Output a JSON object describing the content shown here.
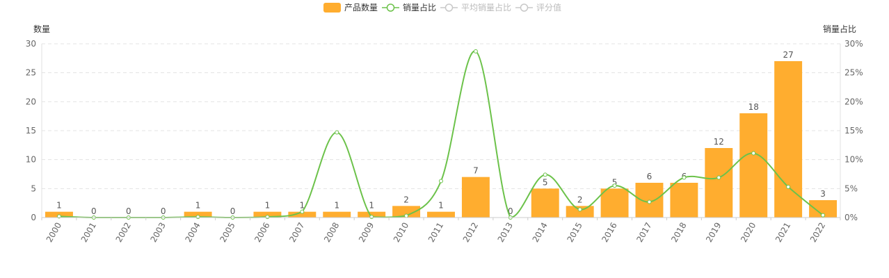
{
  "chart_data": {
    "type": "bar",
    "categories": [
      "2000",
      "2001",
      "2002",
      "2003",
      "2004",
      "2005",
      "2006",
      "2007",
      "2008",
      "2009",
      "2010",
      "2011",
      "2012",
      "2013",
      "2014",
      "2015",
      "2016",
      "2017",
      "2018",
      "2019",
      "2020",
      "2021",
      "2022"
    ],
    "series": [
      {
        "name": "产品数量",
        "type": "bar",
        "axis": "left",
        "color": "#FFAD2F",
        "values": [
          1,
          0,
          0,
          0,
          1,
          0,
          1,
          1,
          1,
          1,
          2,
          1,
          7,
          0,
          5,
          2,
          5,
          6,
          6,
          12,
          18,
          27,
          3
        ],
        "active": true
      },
      {
        "name": "销量占比",
        "type": "line",
        "axis": "right",
        "color": "#6CC24A",
        "values": [
          0.2,
          0,
          0,
          0,
          0.1,
          0,
          0.1,
          1.0,
          14.7,
          0.1,
          0.3,
          6.3,
          28.7,
          0,
          7.4,
          1.4,
          5.5,
          2.7,
          6.9,
          6.9,
          11.1,
          5.3,
          0.4
        ],
        "active": true
      },
      {
        "name": "平均销量占比",
        "type": "line",
        "axis": "right",
        "color": "#C8C8C8",
        "active": false
      },
      {
        "name": "评分值",
        "type": "line",
        "axis": "right",
        "color": "#C8C8C8",
        "active": false
      }
    ],
    "y_left": {
      "label": "数量",
      "min": 0,
      "max": 30,
      "ticks": [
        0,
        5,
        10,
        15,
        20,
        25,
        30
      ]
    },
    "y_right": {
      "label": "销量占比",
      "min": 0,
      "max": 30,
      "ticks": [
        "0%",
        "5%",
        "10%",
        "15%",
        "20%",
        "25%",
        "30%"
      ]
    },
    "grid": true,
    "legend_position": "top-center"
  }
}
